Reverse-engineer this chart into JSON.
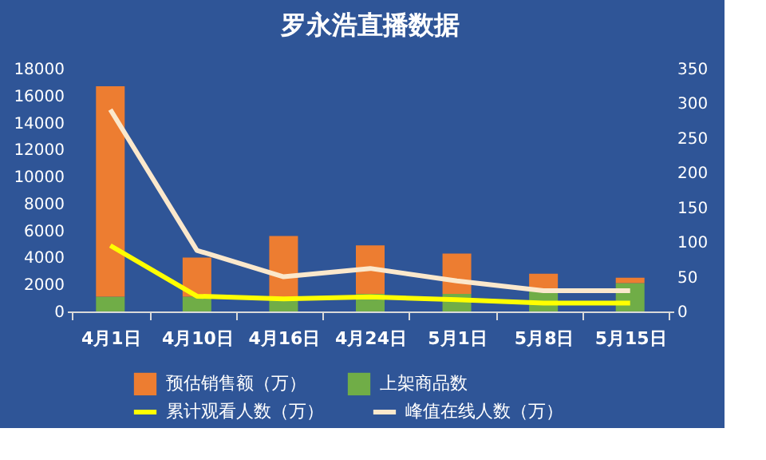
{
  "chart_data": {
    "type": "bar",
    "title": "罗永浩直播数据",
    "stacked": true,
    "categories": [
      "4月1日",
      "4月10日",
      "4月16日",
      "4月24日",
      "5月1日",
      "5月8日",
      "5月15日"
    ],
    "series": [
      {
        "name": "上架商品数",
        "color": "#70ad47",
        "values": [
          1100,
          1100,
          900,
          1300,
          1300,
          1500,
          2100
        ]
      },
      {
        "name": "预估销售额（万）",
        "color": "#ed7d31",
        "values": [
          15600,
          2900,
          4700,
          3600,
          3000,
          1300,
          400
        ]
      },
      {
        "name": "累计观看人数（万）",
        "type": "line",
        "axis": "y2",
        "color": "#ffff00",
        "values": [
          95,
          22,
          18,
          21,
          17,
          12,
          12
        ]
      },
      {
        "name": "峰值在线人数（万）",
        "type": "line",
        "axis": "y2",
        "color": "#fbe8cc",
        "values": [
          291,
          88,
          50,
          62,
          44,
          30,
          30
        ]
      }
    ],
    "ylim": [
      0,
      18000
    ],
    "yticks": [
      0,
      2000,
      4000,
      6000,
      8000,
      10000,
      12000,
      14000,
      16000,
      18000
    ],
    "y2lim": [
      0,
      350
    ],
    "y2ticks": [
      0,
      50,
      100,
      150,
      200,
      250,
      300,
      350
    ],
    "grid": false,
    "legend": "bottom"
  }
}
